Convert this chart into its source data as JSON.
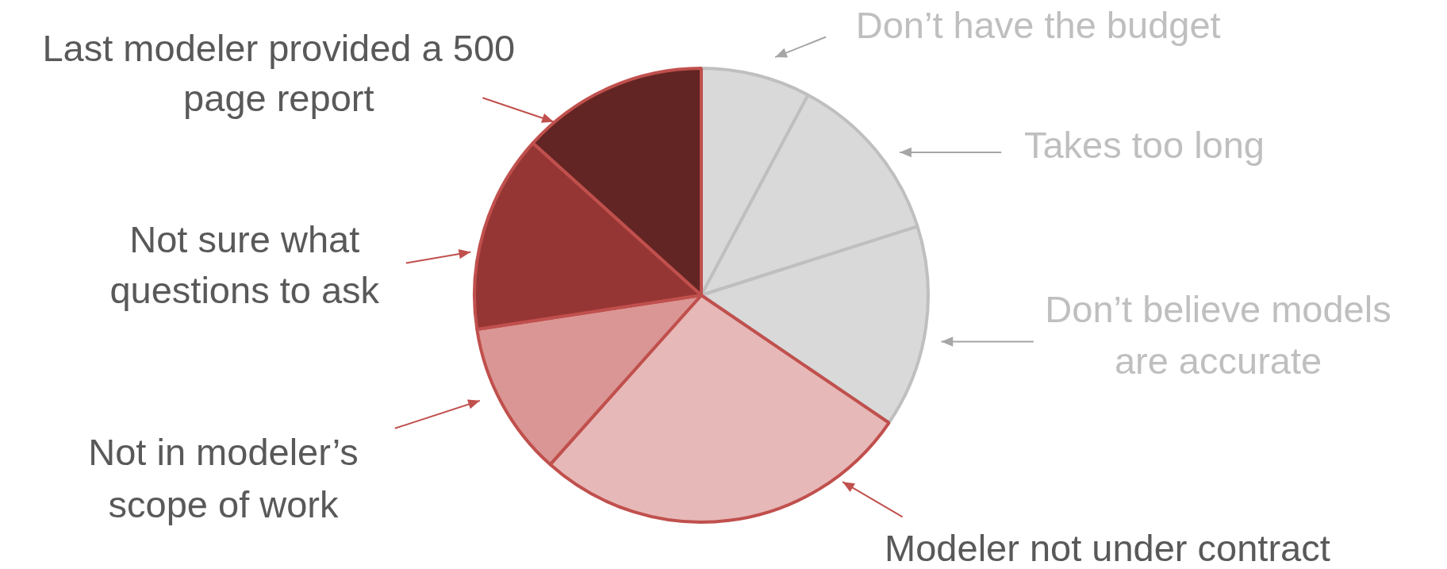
{
  "chart_data": {
    "type": "pie",
    "categories": [
      "Don’t have the budget",
      "Takes too long",
      "Don’t believe models are accurate",
      "Modeler not under contract",
      "Not in modeler’s scope of work",
      "Not sure what questions to ask",
      "Last modeler provided a 500 page report"
    ],
    "values": [
      7.8,
      12.3,
      14.4,
      27.1,
      11.0,
      14.1,
      13.3
    ],
    "colors": [
      "#d9d9d9",
      "#d9d9d9",
      "#d9d9d9",
      "#e6b8b7",
      "#da9694",
      "#963634",
      "#632523"
    ]
  }
}
